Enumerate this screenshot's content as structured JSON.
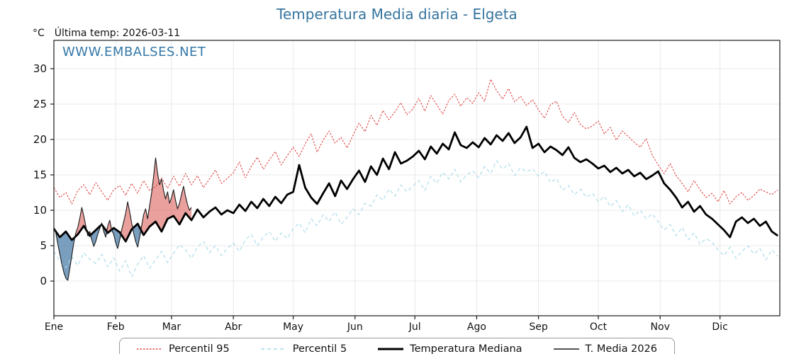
{
  "header": {
    "title": "Temperatura Media diaria - Elgeta",
    "unit": "°C",
    "last_temp": "Última temp: 2026-03-11"
  },
  "watermark": "WWW.EMBALSES.NET",
  "chart_data": {
    "type": "line",
    "title": "Temperatura Media diaria - Elgeta",
    "ylabel": "°C",
    "xlabel": "",
    "ylim": [
      -4.8,
      33.9
    ],
    "yticks": [
      0,
      5,
      10,
      15,
      20,
      25,
      30
    ],
    "xlim_days": [
      1,
      365
    ],
    "grid": true,
    "legend_position": "bottom",
    "last_date": "2026-03-11",
    "months": [
      {
        "label": "Ene",
        "start_day": 1
      },
      {
        "label": "Feb",
        "start_day": 32
      },
      {
        "label": "Mar",
        "start_day": 60
      },
      {
        "label": "Abr",
        "start_day": 91
      },
      {
        "label": "May",
        "start_day": 121
      },
      {
        "label": "Jun",
        "start_day": 152
      },
      {
        "label": "Jul",
        "start_day": 182
      },
      {
        "label": "Ago",
        "start_day": 213
      },
      {
        "label": "Sep",
        "start_day": 244
      },
      {
        "label": "Oct",
        "start_day": 274
      },
      {
        "label": "Nov",
        "start_day": 305
      },
      {
        "label": "Dic",
        "start_day": 335
      }
    ],
    "series": [
      {
        "id": "p95",
        "name": "Percentil 95",
        "style": "dashed",
        "dash": "2.5 2",
        "color": "#e04545",
        "width": 1.1,
        "start_day": 1,
        "step_days": 3,
        "values": [
          13.2,
          11.8,
          12.5,
          10.9,
          12.8,
          13.6,
          12.2,
          13.9,
          12.6,
          11.4,
          12.9,
          13.5,
          12.1,
          13.8,
          12.4,
          14.2,
          12.8,
          13.3,
          14.6,
          13.1,
          14.8,
          13.4,
          15.2,
          13.6,
          14.9,
          13.2,
          14.4,
          15.7,
          13.8,
          14.5,
          15.3,
          16.8,
          14.6,
          16.2,
          17.5,
          15.8,
          17.1,
          18.3,
          16.4,
          17.7,
          18.9,
          17.6,
          19.4,
          20.8,
          18.2,
          19.9,
          21.2,
          19.5,
          20.3,
          18.8,
          20.6,
          22.3,
          21.1,
          23.4,
          22.0,
          24.1,
          22.8,
          23.9,
          25.2,
          23.5,
          24.3,
          25.8,
          24.0,
          26.2,
          24.9,
          23.6,
          25.5,
          26.4,
          24.7,
          25.9,
          25.1,
          26.6,
          25.4,
          28.5,
          26.9,
          25.7,
          27.2,
          25.3,
          26.1,
          24.8,
          25.6,
          24.2,
          23.0,
          24.9,
          25.4,
          23.3,
          22.4,
          23.8,
          22.1,
          21.5,
          21.9,
          22.6,
          20.8,
          21.7,
          19.9,
          21.2,
          20.4,
          19.6,
          18.9,
          20.1,
          17.8,
          16.4,
          15.2,
          16.6,
          14.9,
          13.8,
          12.6,
          14.2,
          12.9,
          11.8,
          12.4,
          11.2,
          12.8,
          10.9,
          11.9,
          12.5,
          11.4,
          12.1,
          13.0,
          12.6,
          12.2,
          12.9
        ]
      },
      {
        "id": "p5",
        "name": "Percentil 5",
        "style": "dashed",
        "dash": "5 4",
        "color": "#a6d9e8",
        "width": 1.1,
        "start_day": 1,
        "step_days": 3,
        "values": [
          4.2,
          2.8,
          1.9,
          3.4,
          2.2,
          4.0,
          3.1,
          2.5,
          3.8,
          2.0,
          3.3,
          1.4,
          2.9,
          0.6,
          2.4,
          3.6,
          1.8,
          3.0,
          4.2,
          2.6,
          3.9,
          5.2,
          4.4,
          3.2,
          4.8,
          5.6,
          4.0,
          5.0,
          3.6,
          4.6,
          5.4,
          4.2,
          5.8,
          6.6,
          5.0,
          6.2,
          7.0,
          5.6,
          6.8,
          6.0,
          7.4,
          8.2,
          6.8,
          8.8,
          7.8,
          9.4,
          8.4,
          9.8,
          8.0,
          9.0,
          10.2,
          9.4,
          11.0,
          10.6,
          12.2,
          11.4,
          13.0,
          12.0,
          13.6,
          12.6,
          13.4,
          14.2,
          12.8,
          14.8,
          13.8,
          15.4,
          14.4,
          15.8,
          14.0,
          15.0,
          15.6,
          14.6,
          16.2,
          15.2,
          17.0,
          15.8,
          16.6,
          14.9,
          16.0,
          15.4,
          15.9,
          14.8,
          15.5,
          13.9,
          14.5,
          12.8,
          13.5,
          12.2,
          13.0,
          11.8,
          12.4,
          11.2,
          12.0,
          10.5,
          11.4,
          9.8,
          10.8,
          9.2,
          10.0,
          8.8,
          9.5,
          8.4,
          7.2,
          8.0,
          6.4,
          7.6,
          5.8,
          6.8,
          5.2,
          6.0,
          5.5,
          4.4,
          3.6,
          4.8,
          3.2,
          4.2,
          5.0,
          3.8,
          4.6,
          3.0,
          4.4,
          3.5
        ]
      },
      {
        "id": "median",
        "name": "Temperatura Mediana",
        "style": "solid",
        "color": "#000000",
        "width": 2.8,
        "start_day": 1,
        "step_days": 3,
        "values": [
          7.4,
          6.2,
          7.0,
          5.8,
          6.6,
          7.8,
          6.4,
          7.2,
          8.0,
          6.8,
          7.5,
          6.9,
          5.6,
          7.3,
          8.1,
          6.5,
          7.7,
          8.4,
          7.0,
          8.8,
          9.2,
          8.0,
          9.6,
          8.6,
          10.1,
          9.0,
          9.8,
          10.4,
          9.4,
          10.0,
          9.6,
          10.8,
          9.9,
          11.2,
          10.3,
          11.6,
          10.6,
          11.9,
          11.0,
          12.2,
          12.6,
          16.4,
          13.2,
          11.8,
          10.9,
          12.4,
          13.8,
          12.0,
          14.2,
          13.0,
          14.4,
          15.6,
          14.0,
          16.2,
          15.0,
          17.3,
          15.8,
          18.2,
          16.6,
          17.0,
          17.6,
          18.4,
          17.2,
          19.0,
          18.0,
          19.4,
          18.6,
          21.0,
          19.2,
          18.8,
          19.6,
          18.9,
          20.2,
          19.3,
          20.6,
          19.8,
          20.9,
          19.5,
          20.3,
          21.8,
          18.8,
          19.4,
          18.2,
          19.0,
          18.5,
          17.8,
          18.9,
          17.4,
          16.8,
          17.2,
          16.6,
          15.9,
          16.3,
          15.4,
          16.0,
          15.2,
          15.7,
          14.8,
          15.3,
          14.4,
          14.9,
          15.5,
          13.8,
          12.9,
          11.8,
          10.4,
          11.2,
          9.8,
          10.6,
          9.4,
          8.8,
          8.0,
          7.2,
          6.2,
          8.4,
          9.0,
          8.2,
          8.8,
          7.8,
          8.4,
          7.0,
          6.4
        ]
      },
      {
        "id": "t2026",
        "name": "T. Media 2026",
        "style": "solid",
        "color": "#1a1a1a",
        "width": 1.1,
        "start_day": 1,
        "step_days": 1,
        "fill_reference": "median",
        "fill_above_color": "#d9534f",
        "fill_above_opacity": 0.55,
        "fill_below_color": "#4d7ea8",
        "fill_below_opacity": 0.75,
        "values": [
          7.6,
          6.8,
          5.2,
          3.8,
          2.4,
          1.2,
          0.4,
          0.1,
          1.8,
          3.6,
          5.4,
          6.8,
          7.6,
          8.9,
          10.4,
          9.2,
          7.8,
          6.4,
          7.0,
          5.8,
          4.9,
          5.6,
          6.6,
          7.4,
          8.2,
          7.0,
          6.2,
          7.8,
          8.6,
          7.2,
          6.6,
          5.4,
          4.6,
          5.8,
          7.2,
          8.4,
          9.6,
          11.2,
          9.8,
          8.2,
          6.8,
          5.6,
          4.8,
          6.2,
          7.8,
          9.4,
          10.2,
          8.8,
          10.6,
          12.4,
          14.8,
          17.4,
          15.2,
          13.6,
          14.4,
          12.8,
          11.6,
          12.6,
          11.0,
          11.8,
          12.9,
          11.4,
          10.2,
          11.0,
          12.2,
          13.4,
          12.0,
          10.8,
          10.0,
          10.4
        ]
      }
    ]
  }
}
